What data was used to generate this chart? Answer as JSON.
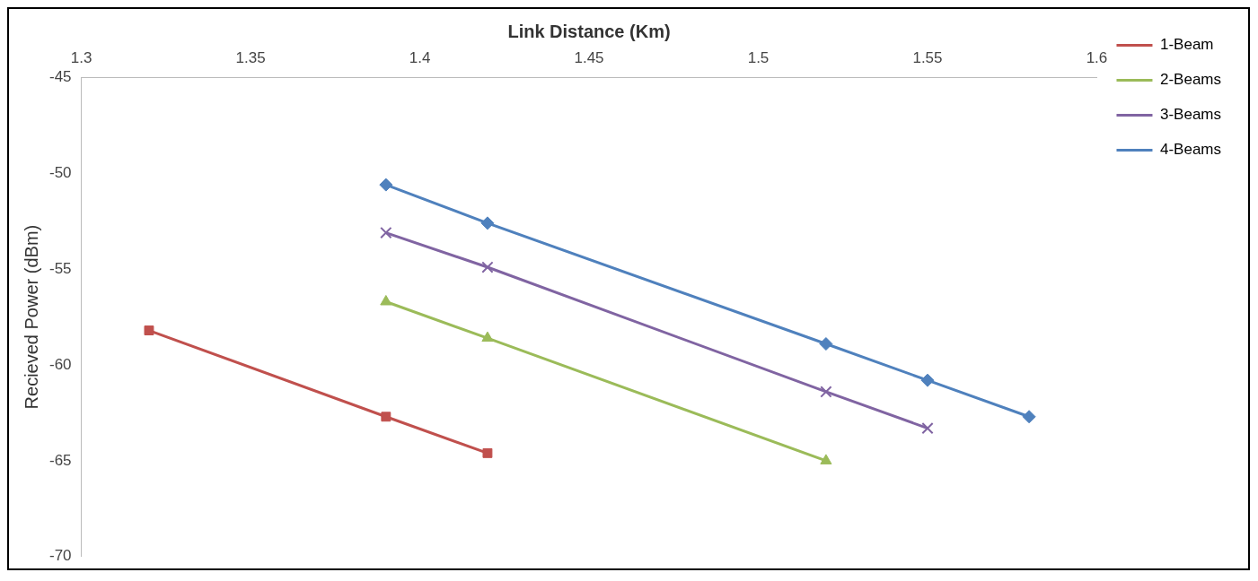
{
  "chart_data": {
    "type": "line",
    "xlabel": "Link Distance (Km)",
    "ylabel": "Recieved Power (dBm)",
    "xlim": [
      1.3,
      1.6
    ],
    "xticks": [
      1.3,
      1.35,
      1.4,
      1.45,
      1.5,
      1.55,
      1.6
    ],
    "ylim": [
      -70,
      -45
    ],
    "yticks": [
      -70,
      -65,
      -60,
      -55,
      -50,
      -45
    ],
    "grid": false,
    "legend": "right",
    "line_style": "solid",
    "series": [
      {
        "name": "1-Beam",
        "color": "#c0504d",
        "marker": "square",
        "x": [
          1.32,
          1.39,
          1.42
        ],
        "values": [
          -58.2,
          -62.7,
          -64.6
        ]
      },
      {
        "name": "2-Beams",
        "color": "#9bbb59",
        "marker": "triangle",
        "x": [
          1.39,
          1.42,
          1.52
        ],
        "values": [
          -56.7,
          -58.6,
          -65.0
        ]
      },
      {
        "name": "3-Beams",
        "color": "#8064a2",
        "marker": "cross",
        "x": [
          1.39,
          1.42,
          1.52,
          1.55
        ],
        "values": [
          -53.1,
          -54.9,
          -61.4,
          -63.3
        ]
      },
      {
        "name": "4-Beams",
        "color": "#4f81bd",
        "marker": "diamond",
        "x": [
          1.39,
          1.42,
          1.52,
          1.55,
          1.58
        ],
        "values": [
          -50.6,
          -52.6,
          -58.9,
          -60.8,
          -62.7
        ]
      }
    ]
  }
}
